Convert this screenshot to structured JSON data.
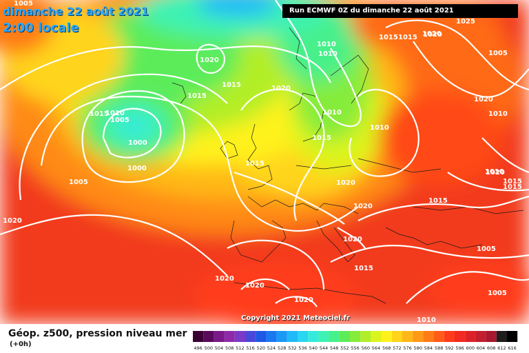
{
  "header": {
    "date": "dimanche 22 août 2021",
    "time": "2:00 locale",
    "run": "Run ECMWF 0Z du dimanche 22 août 2021"
  },
  "footer": {
    "copyright": "Copyright 2021 Meteociel.fr",
    "title": "Géop. z500, pression niveau mer",
    "lead": "(+0h)"
  },
  "legend": {
    "values": [
      "496",
      "500",
      "504",
      "508",
      "512",
      "516",
      "520",
      "524",
      "528",
      "532",
      "536",
      "540",
      "544",
      "548",
      "552",
      "556",
      "560",
      "564",
      "568",
      "572",
      "576",
      "580",
      "584",
      "588",
      "592",
      "596",
      "600",
      "604",
      "608",
      "612",
      "616"
    ],
    "colors": [
      "#3a0032",
      "#5a0a5a",
      "#7a1a8a",
      "#8e2aaa",
      "#7a3ac8",
      "#4a48d8",
      "#1e58e6",
      "#1a78f0",
      "#1a9af6",
      "#20baf8",
      "#2ad6f2",
      "#34eadc",
      "#3ef2b4",
      "#46f08a",
      "#5cec5a",
      "#86ec3a",
      "#b2ee28",
      "#dcf41e",
      "#fff21c",
      "#ffd41a",
      "#ffb818",
      "#ff9a16",
      "#ff7c16",
      "#ff5c18",
      "#ff3c1a",
      "#f22a22",
      "#dc2228",
      "#c21e2e",
      "#a8182e",
      "#1e1e1e",
      "#000000"
    ]
  },
  "isobar_labels": [
    "1005",
    "1015",
    "1020",
    "1025",
    "1010",
    "1015",
    "1020",
    "1005",
    "1020",
    "1010",
    "1010",
    "1015",
    "1020",
    "1015",
    "1010",
    "1015",
    "1010",
    "1015",
    "1010",
    "1005",
    "1000",
    "1000",
    "1005",
    "1015",
    "1020",
    "1020",
    "1020",
    "1015",
    "1015",
    "1005",
    "1020",
    "1020",
    "1020",
    "1005",
    "1015",
    "1010",
    "1010",
    "1020",
    "1020",
    "1015",
    "1020"
  ]
}
